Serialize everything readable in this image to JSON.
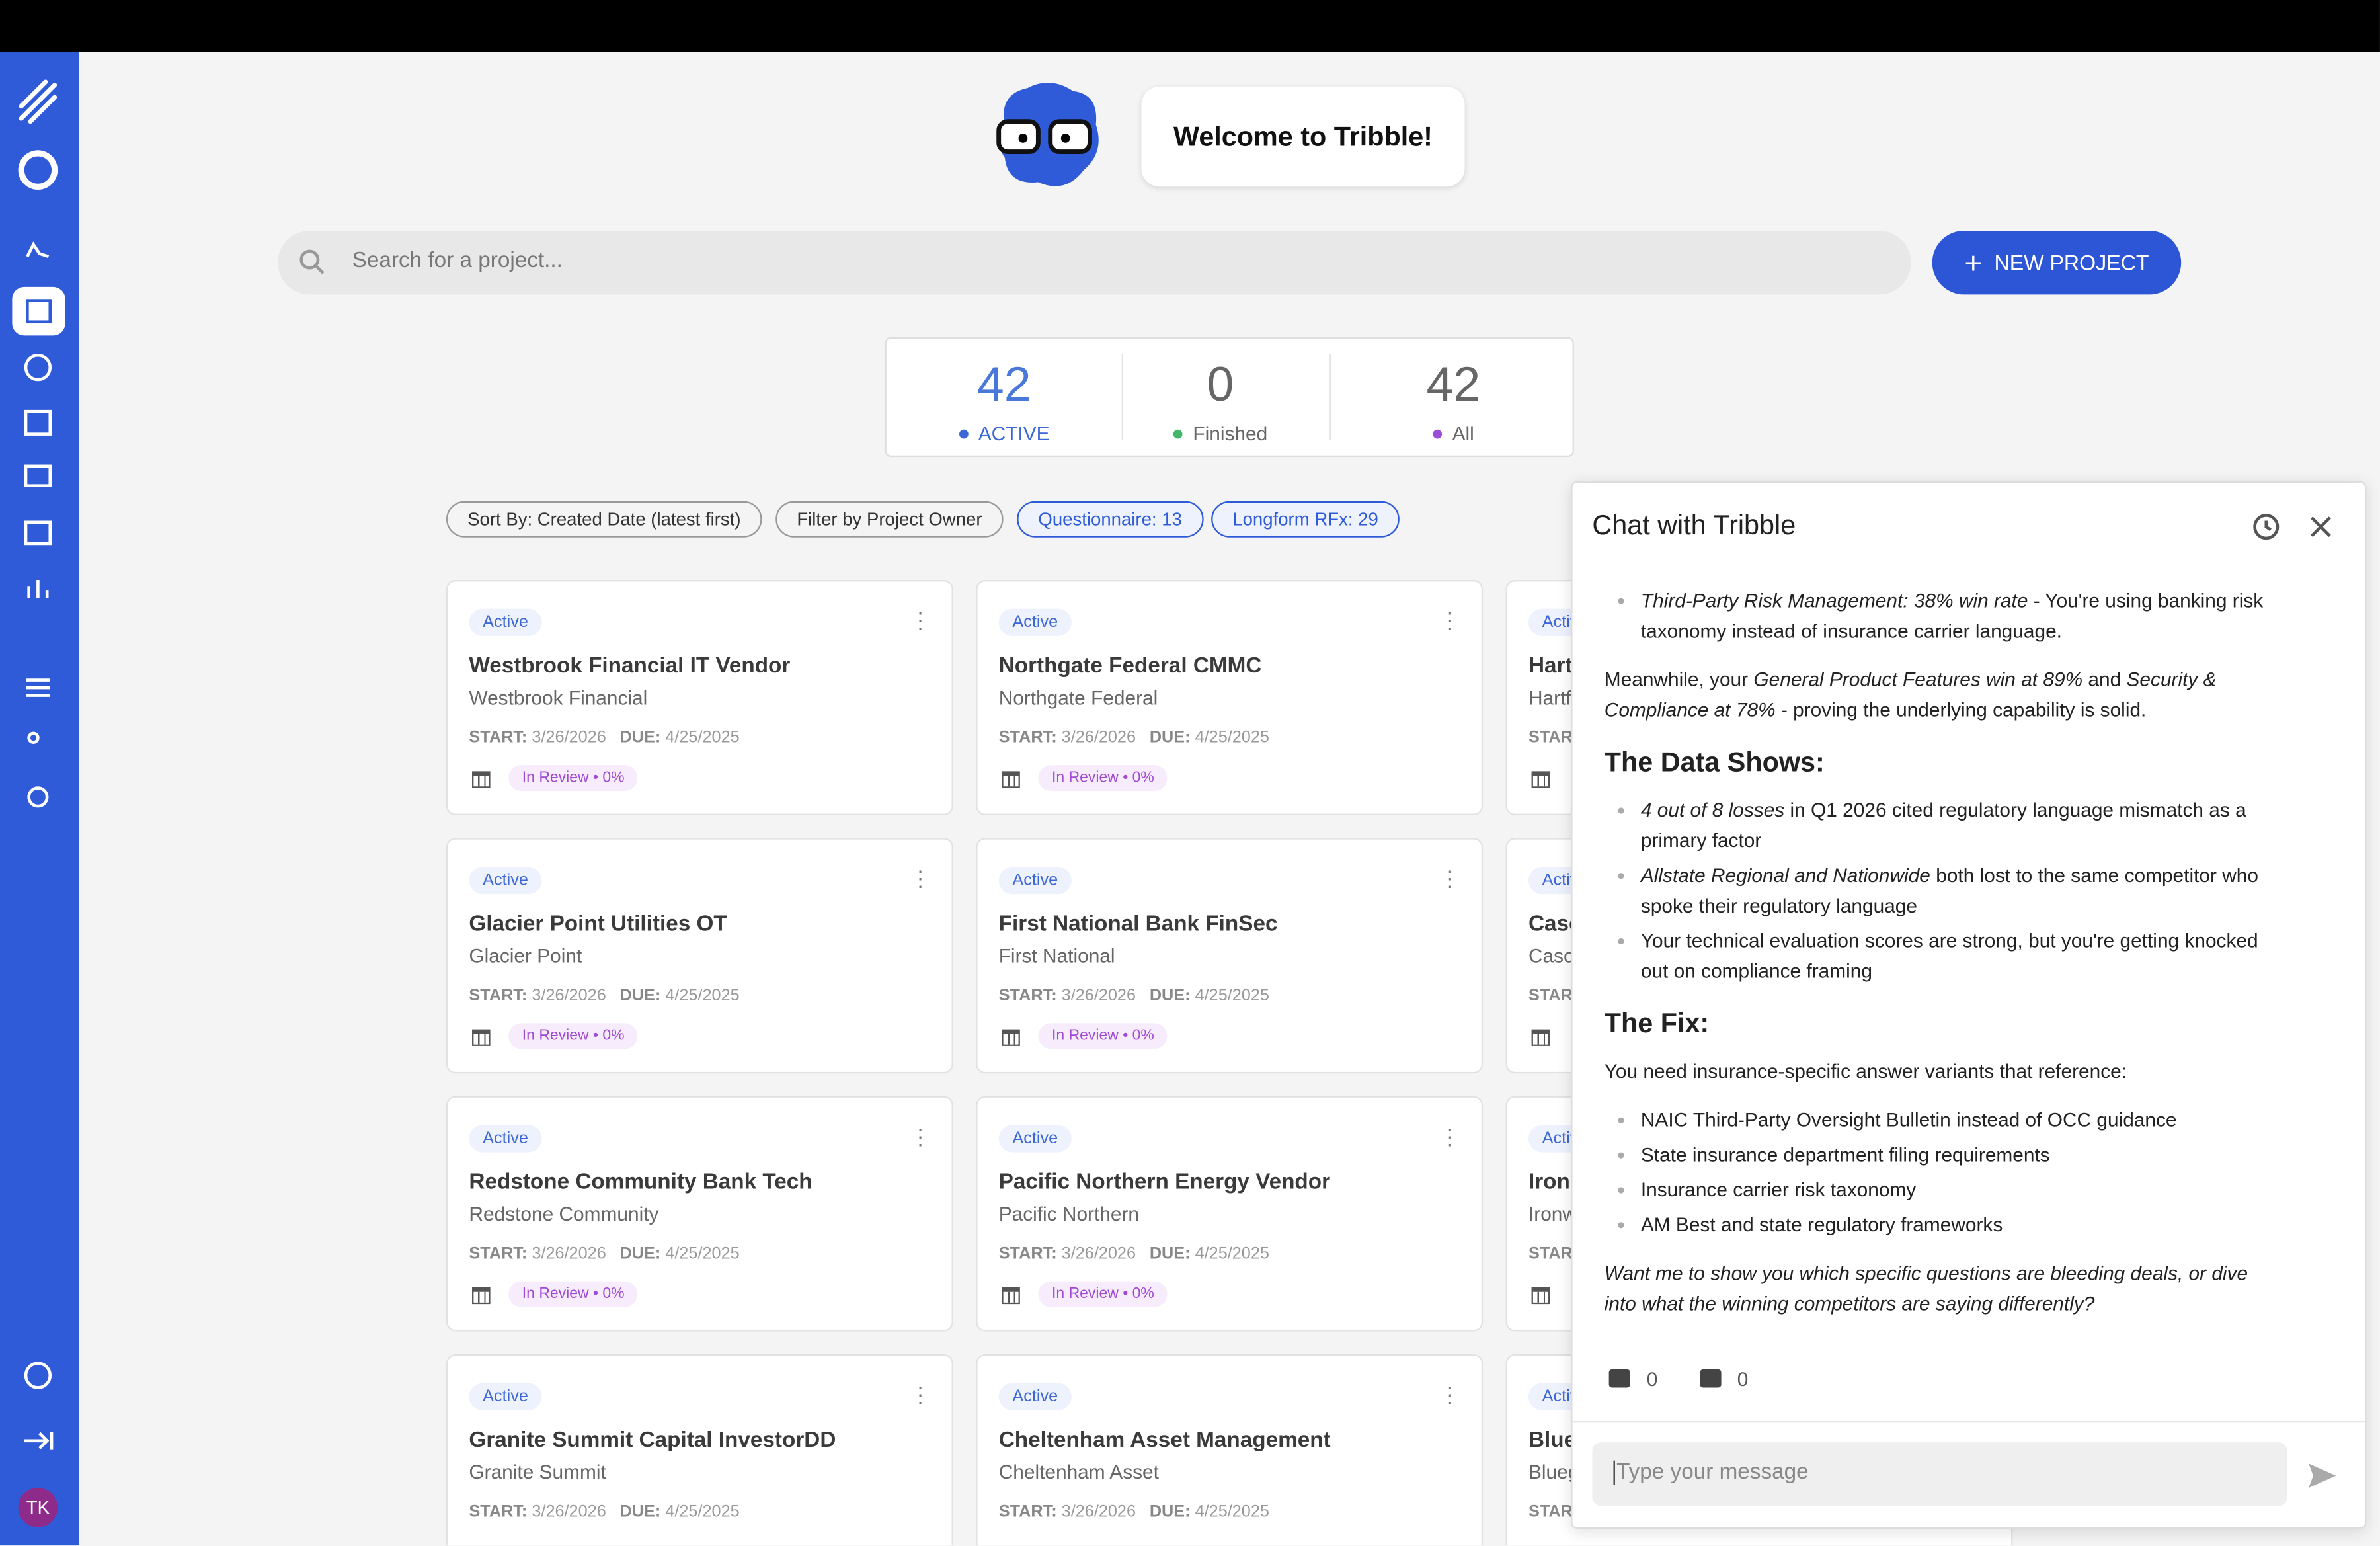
{
  "welcome": "Welcome to Tribble!",
  "search_placeholder": "Search for a project...",
  "new_project": "NEW PROJECT",
  "stats": [
    {
      "value": 42,
      "label": "ACTIVE"
    },
    {
      "value": 0,
      "label": "Finished"
    },
    {
      "value": 42,
      "label": "All"
    }
  ],
  "filters": [
    "Sort By: Created Date (latest first)",
    "Filter by Project Owner",
    "Questionnaire: 13",
    "Longform RFx: 29"
  ],
  "projects": [
    {
      "status": "Active",
      "title": "Westbrook Financial IT Vendor",
      "org": "Westbrook Financial",
      "start_label": "START:",
      "start": "3/26/2026",
      "due_label": "DUE:",
      "due": "4/25/2025",
      "review": "In Review • 0%"
    },
    {
      "status": "Active",
      "title": "Northgate Federal CMMC",
      "org": "Northgate Federal",
      "start_label": "START:",
      "start": "3/26/2026",
      "due_label": "DUE:",
      "due": "4/25/2025",
      "review": "In Review • 0%"
    },
    {
      "status": "Active",
      "title": "Hart",
      "org": "Hartf",
      "start_label": "STAR"
    },
    {
      "status": "Active",
      "title": "Glacier Point Utilities OT",
      "org": "Glacier Point",
      "start_label": "START:",
      "start": "3/26/2026",
      "due_label": "DUE:",
      "due": "4/25/2025",
      "review": "In Review • 0%"
    },
    {
      "status": "Active",
      "title": "First National Bank FinSec",
      "org": "First National",
      "start_label": "START:",
      "start": "3/26/2026",
      "due_label": "DUE:",
      "due": "4/25/2025",
      "review": "In Review • 0%"
    },
    {
      "status": "Active",
      "title": "Case",
      "org": "Casc",
      "start_label": "STAR"
    },
    {
      "status": "Active",
      "title": "Redstone Community Bank Tech",
      "org": "Redstone Community",
      "start_label": "START:",
      "start": "3/26/2026",
      "due_label": "DUE:",
      "due": "4/25/2025",
      "review": "In Review • 0%"
    },
    {
      "status": "Active",
      "title": "Pacific Northern Energy Vendor",
      "org": "Pacific Northern",
      "start_label": "START:",
      "start": "3/26/2026",
      "due_label": "DUE:",
      "due": "4/25/2025",
      "review": "In Review • 0%"
    },
    {
      "status": "Active",
      "title": "Iron",
      "org": "Ironw",
      "start_label": "STAR"
    },
    {
      "status": "Active",
      "title": "Granite Summit Capital InvestorDD",
      "org": "Granite Summit",
      "start_label": "START:",
      "start": "3/26/2026",
      "due_label": "DUE:",
      "due": "4/25/2025"
    },
    {
      "status": "Active",
      "title": "Cheltenham Asset Management",
      "org": "Cheltenham Asset",
      "start_label": "START:",
      "start": "3/26/2026",
      "due_label": "DUE:",
      "due": "4/25/2025"
    },
    {
      "status": "Active",
      "title": "Blue",
      "org": "Blueg",
      "start_label": "STAR"
    }
  ],
  "chat": {
    "title": "Chat with Tribble",
    "blocks": [
      {
        "kind": "ul",
        "items": [
          [
            {
              "t": "Third-Party Risk Management: 38% win rate",
              "i": true
            },
            {
              "t": " - You're using banking risk taxonomy instead of insurance carrier language."
            }
          ]
        ]
      },
      {
        "kind": "p",
        "items": [
          [
            {
              "t": "Meanwhile, your "
            },
            {
              "t": "General Product Features win at 89%",
              "i": true
            },
            {
              "t": " and "
            },
            {
              "t": "Security & Compliance at 78%",
              "i": true
            },
            {
              "t": " - proving the underlying capability is solid."
            }
          ]
        ]
      },
      {
        "kind": "h",
        "items": [
          [
            {
              "t": "The Data Shows:"
            }
          ]
        ]
      },
      {
        "kind": "ul",
        "items": [
          [
            {
              "t": "4 out of 8 losses",
              "i": true
            },
            {
              "t": " in Q1 2026 cited regulatory language mismatch as a primary factor"
            }
          ],
          [
            {
              "t": "Allstate Regional and Nationwide",
              "i": true
            },
            {
              "t": " both lost to the same competitor who spoke their regulatory language"
            }
          ],
          [
            {
              "t": "Your technical evaluation scores are strong, but you're getting knocked out on compliance framing"
            }
          ]
        ]
      },
      {
        "kind": "h",
        "items": [
          [
            {
              "t": "The Fix:"
            }
          ]
        ]
      },
      {
        "kind": "p",
        "items": [
          [
            {
              "t": "You need insurance-specific answer variants that reference:"
            }
          ]
        ]
      },
      {
        "kind": "ul",
        "items": [
          [
            {
              "t": "NAIC Third-Party Oversight Bulletin instead of OCC guidance"
            }
          ],
          [
            {
              "t": "State insurance department filing requirements"
            }
          ],
          [
            {
              "t": "Insurance carrier risk taxonomy"
            }
          ],
          [
            {
              "t": "AM Best and state regulatory frameworks"
            }
          ]
        ]
      },
      {
        "kind": "p",
        "items": [
          [
            {
              "t": "Want me to show you which specific questions are bleeding deals, or dive into what the winning competitors are saying differently?",
              "i": true
            }
          ]
        ]
      }
    ],
    "likes": 0,
    "dislikes": 0,
    "input_placeholder": "Type your message"
  },
  "user_initials": "TK"
}
